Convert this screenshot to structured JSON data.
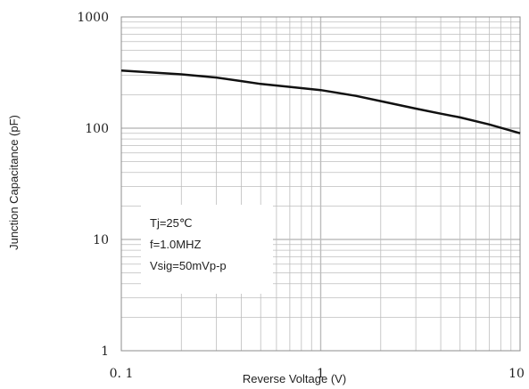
{
  "chart_data": {
    "type": "line",
    "xlabel": "Reverse Voltage (V)",
    "ylabel": "Junction Capacitance (pF)",
    "x_scale": "log",
    "y_scale": "log",
    "xlim": [
      0.1,
      10
    ],
    "ylim": [
      1,
      1000
    ],
    "x_ticks": [
      "0. 1",
      "1",
      "10"
    ],
    "y_ticks": [
      "1",
      "10",
      "100",
      "1000"
    ],
    "grid": true,
    "annotation": {
      "lines": [
        "Tj=25℃",
        "f=1.0MHZ",
        "Vsig=50mVp-p"
      ]
    },
    "series": [
      {
        "x": [
          0.1,
          0.15,
          0.2,
          0.3,
          0.4,
          0.5,
          0.7,
          1.0,
          1.5,
          2.0,
          3.0,
          4.0,
          5.0,
          7.0,
          10.0
        ],
        "y": [
          330,
          315,
          305,
          285,
          265,
          250,
          235,
          220,
          195,
          175,
          150,
          135,
          125,
          108,
          90
        ]
      }
    ],
    "colors": {
      "line": "#111111",
      "grid": "#bdbdbd",
      "frame": "#8c8c8c"
    }
  }
}
